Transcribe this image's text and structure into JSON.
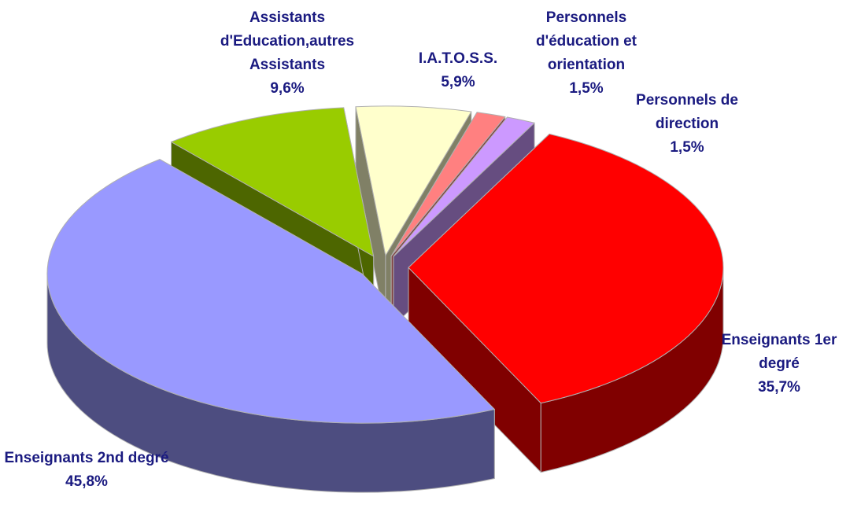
{
  "chart_data": {
    "type": "pie3d",
    "categories": [
      "Assistants d'Education,autres Assistants",
      "I.A.T.O.S.S.",
      "Personnels d'éducation et orientation",
      "Personnels de direction",
      "Enseignants 1er degré",
      "Enseignants 2nd degré"
    ],
    "values": [
      9.6,
      5.9,
      1.5,
      1.5,
      35.7,
      45.8
    ],
    "value_labels": [
      "9,6%",
      "5,9%",
      "1,5%",
      "1,5%",
      "35,7%",
      "45,8%"
    ],
    "colors": [
      "#99cc00",
      "#ffffcc",
      "#ff8080",
      "#cc99ff",
      "#ff0000",
      "#9999ff"
    ]
  }
}
